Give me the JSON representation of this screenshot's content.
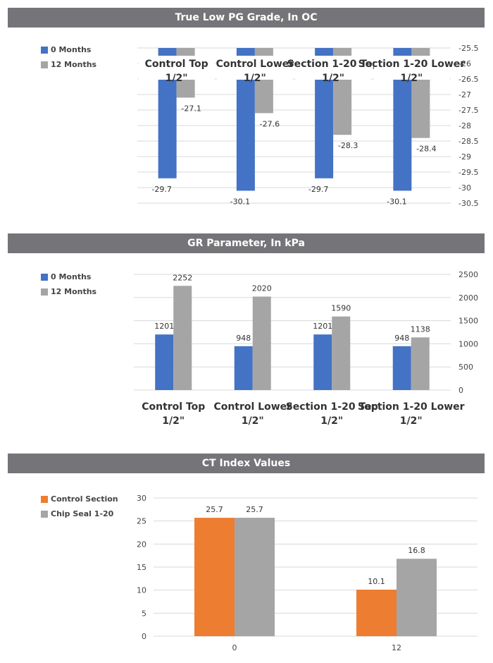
{
  "chart_data": [
    {
      "type": "bar",
      "title": "True Low PG Grade, In OC",
      "categories": [
        "Control Top 1/2\"",
        "Control Lower 1/2\"",
        "Section 1-20 Top 1/2\"",
        "Section 1-20 Lower 1/2\""
      ],
      "series": [
        {
          "name": "0 Months",
          "values": [
            -29.7,
            -30.1,
            -29.7,
            -30.1
          ],
          "color": "#4472C4"
        },
        {
          "name": "12 Months",
          "values": [
            -27.1,
            -27.6,
            -28.3,
            -28.4
          ],
          "color": "#A5A5A5"
        }
      ],
      "ylim": [
        -30.5,
        -25.5
      ],
      "yticks": [
        "-25.5",
        "-26",
        "-26.5",
        "-27",
        "-27.5",
        "-28",
        "-28.5",
        "-29",
        "-29.5",
        "-30",
        "-30.5"
      ],
      "xlabel": "",
      "ylabel": "",
      "legend": "top-left",
      "grid": true
    },
    {
      "type": "bar",
      "title": "GR Parameter, In kPa",
      "categories": [
        "Control Top 1/2\"",
        "Control Lower 1/2\"",
        "Section 1-20 Top 1/2\"",
        "Section 1-20 Lower 1/2\""
      ],
      "series": [
        {
          "name": "0 Months",
          "values": [
            1201,
            948,
            1201,
            948
          ],
          "color": "#4472C4"
        },
        {
          "name": "12 Months",
          "values": [
            2252,
            2020,
            1590,
            1138
          ],
          "color": "#A5A5A5"
        }
      ],
      "ylim": [
        0,
        2500
      ],
      "yticks": [
        "0",
        "500",
        "1000",
        "1500",
        "2000",
        "2500"
      ],
      "xlabel": "",
      "ylabel": "",
      "legend": "top-left",
      "grid": true
    },
    {
      "type": "bar",
      "title": "CT Index Values",
      "categories": [
        "0",
        "12"
      ],
      "series": [
        {
          "name": "Control Section",
          "values": [
            25.7,
            10.1
          ],
          "color": "#ED7D31"
        },
        {
          "name": "Chip Seal 1-20",
          "values": [
            25.7,
            16.8
          ],
          "color": "#A5A5A5"
        }
      ],
      "ylim": [
        0,
        30
      ],
      "yticks": [
        "0",
        "5",
        "10",
        "15",
        "20",
        "25",
        "30"
      ],
      "xlabel": "",
      "ylabel": "",
      "legend": "top-left",
      "grid": true
    }
  ]
}
